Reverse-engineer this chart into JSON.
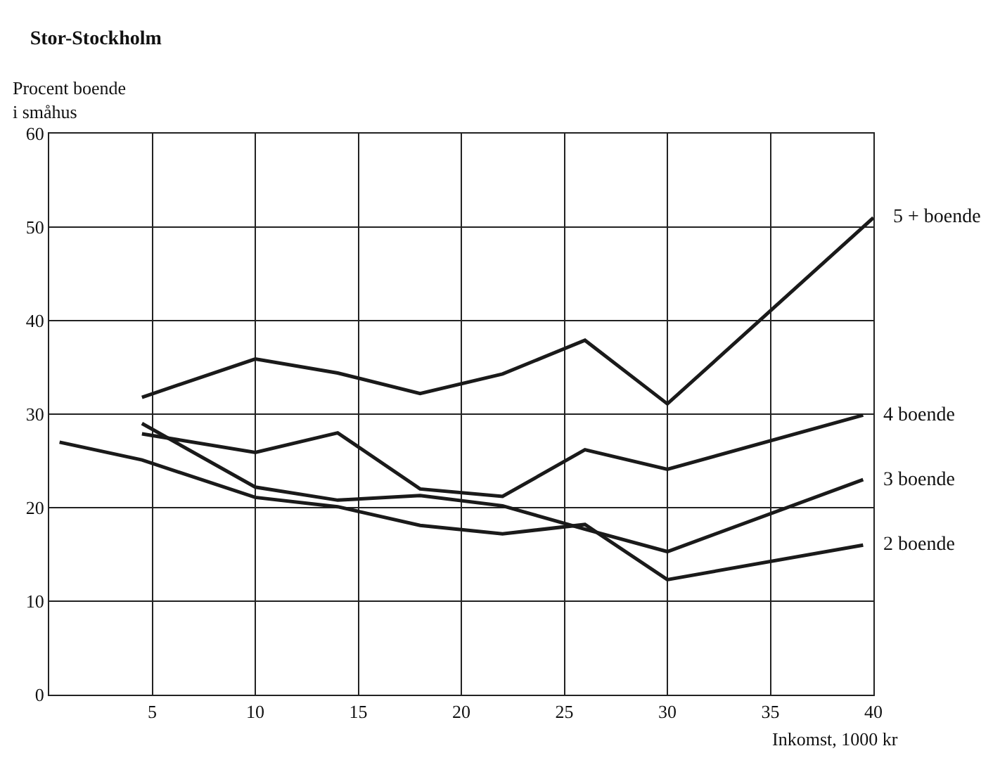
{
  "chart_data": {
    "type": "line",
    "title": "Stor-Stockholm",
    "xlabel": "Inkomst, 1000 kr",
    "ylabel": "Procent boende\ni småhus",
    "xlim": [
      0,
      40
    ],
    "xticks": [
      5,
      10,
      15,
      20,
      25,
      30,
      35,
      40
    ],
    "ylim": [
      0,
      60
    ],
    "yticks": [
      0,
      10,
      20,
      30,
      40,
      50,
      60
    ],
    "grid": true,
    "legend": false,
    "marker": "none",
    "line_style": "solid",
    "series": [
      {
        "name": "5 + boende",
        "color": "#1a1a1a",
        "x": [
          4.5,
          10,
          14,
          18,
          22,
          26,
          30,
          40
        ],
        "values": [
          31.8,
          35.9,
          34.4,
          32.2,
          34.3,
          37.9,
          31.1,
          51
        ]
      },
      {
        "name": "4 boende",
        "color": "#1a1a1a",
        "x": [
          4.5,
          10,
          14,
          18,
          22,
          26,
          30,
          39.5
        ],
        "values": [
          27.9,
          25.9,
          28,
          22,
          21.2,
          26.2,
          24.1,
          29.9
        ]
      },
      {
        "name": "3 boende",
        "color": "#1a1a1a",
        "x": [
          4.5,
          10,
          14,
          18,
          22,
          26,
          30,
          39.5
        ],
        "values": [
          29,
          22.2,
          20.8,
          21.3,
          20.2,
          17.7,
          15.3,
          23
        ]
      },
      {
        "name": "2 boende",
        "color": "#1a1a1a",
        "x": [
          0.5,
          4.5,
          10,
          14,
          18,
          22,
          26,
          30,
          39.5
        ],
        "values": [
          27,
          25.1,
          21.1,
          20.1,
          18.1,
          17.2,
          18.2,
          12.3,
          16
        ]
      }
    ]
  }
}
